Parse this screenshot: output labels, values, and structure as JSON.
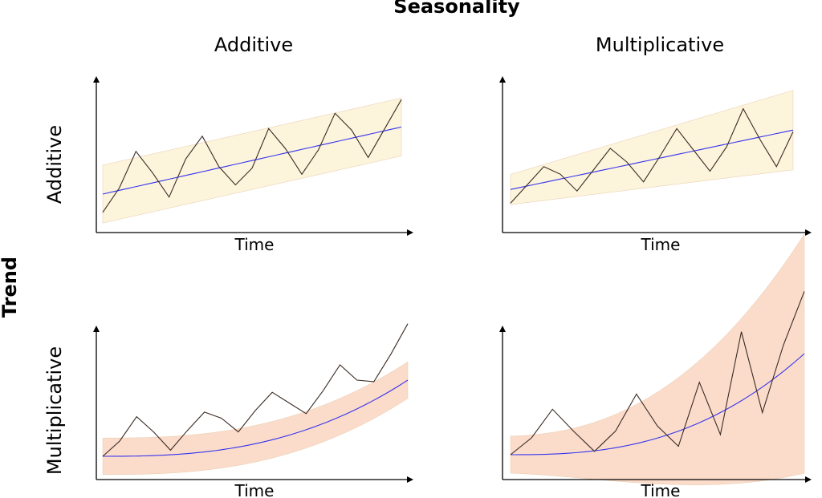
{
  "title": "Seasonality",
  "row_axis_title": "Trend",
  "columns": [
    "Additive",
    "Multiplicative"
  ],
  "rows": [
    "Additive",
    "Multiplicative"
  ],
  "x_label": "Time",
  "colors": {
    "trend": "#3333ee",
    "series": "#3a2a22",
    "band_additive_trend": "#fdf4dc",
    "band_multiplicative_trend": "#fbdccb"
  },
  "panels": [
    {
      "id": "add-add",
      "trend": "additive",
      "seasonality": "additive",
      "trend_start": 0.2,
      "trend_end": 0.64,
      "series": [
        0.08,
        0.24,
        0.48,
        0.34,
        0.18,
        0.43,
        0.58,
        0.38,
        0.26,
        0.37,
        0.63,
        0.5,
        0.33,
        0.49,
        0.73,
        0.62,
        0.44,
        0.63,
        0.82
      ],
      "band_half_width": 0.19
    },
    {
      "id": "add-mult",
      "trend": "additive",
      "seasonality": "multiplicative",
      "trend_start": 0.23,
      "trend_end": 0.62,
      "series": [
        0.14,
        0.26,
        0.38,
        0.33,
        0.22,
        0.36,
        0.5,
        0.41,
        0.28,
        0.45,
        0.63,
        0.49,
        0.35,
        0.51,
        0.76,
        0.56,
        0.38,
        0.61
      ],
      "band_half_width": 0.18
    },
    {
      "id": "mult-add",
      "trend": "multiplicative",
      "seasonality": "additive",
      "series": [
        0.1,
        0.2,
        0.36,
        0.26,
        0.14,
        0.27,
        0.39,
        0.35,
        0.26,
        0.4,
        0.52,
        0.45,
        0.38,
        0.53,
        0.7,
        0.6,
        0.59,
        0.77,
        0.97
      ]
    },
    {
      "id": "mult-mult",
      "trend": "multiplicative",
      "seasonality": "multiplicative",
      "series": [
        0.1,
        0.2,
        0.37,
        0.24,
        0.12,
        0.24,
        0.46,
        0.27,
        0.15,
        0.53,
        0.22,
        0.83,
        0.35,
        0.75,
        1.07
      ]
    }
  ]
}
